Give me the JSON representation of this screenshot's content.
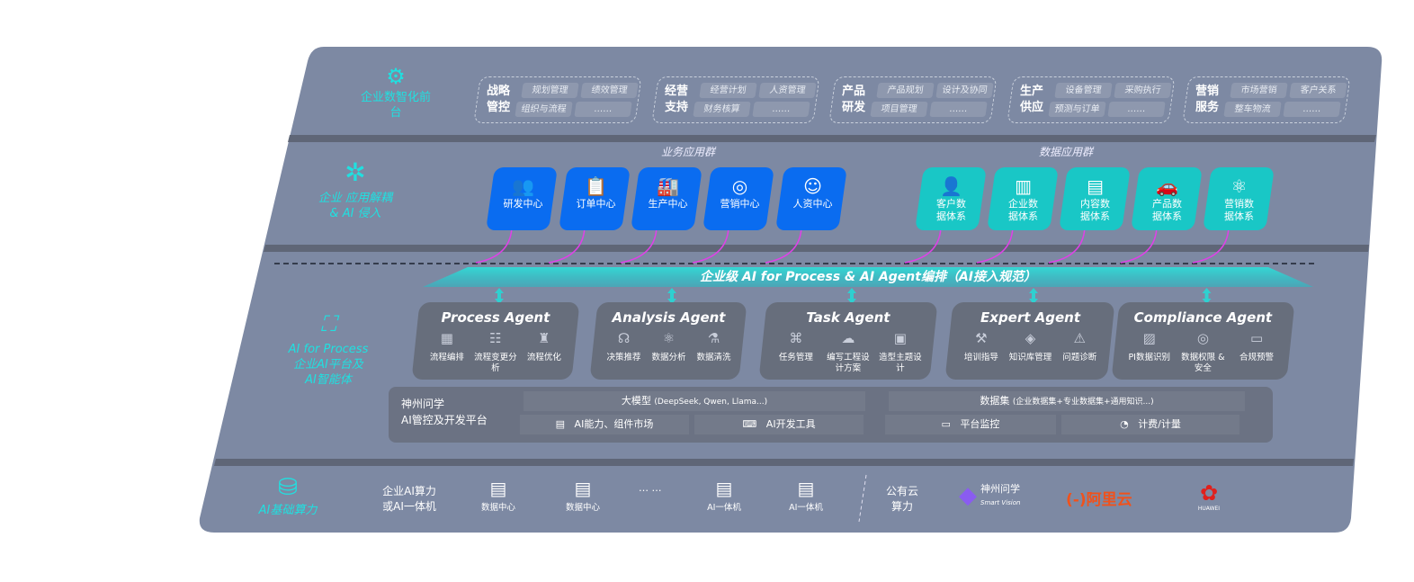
{
  "layers": {
    "front": {
      "label": "企业数智化前台",
      "icon": "brain-icon"
    },
    "apps": {
      "label_line1": "企业 应用解耦",
      "label_line2": "& AI 侵入",
      "icon": "molecule-icon"
    },
    "ai": {
      "label_line1": "AI for Process",
      "label_line2": "企业AI平台及",
      "label_line3": "AI智能体",
      "icon": "face-scan-icon"
    },
    "infra": {
      "label": "AI基础算力",
      "icon": "database-icon"
    }
  },
  "front_groups": [
    {
      "title": "战略管控",
      "items": [
        "规划管理",
        "绩效管理",
        "组织与流程",
        "……"
      ]
    },
    {
      "title": "经营支持",
      "items": [
        "经营计划",
        "人资管理",
        "财务核算",
        "……"
      ]
    },
    {
      "title": "产品研发",
      "items": [
        "产品规划",
        "设计及协同",
        "项目管理",
        "……"
      ]
    },
    {
      "title": "生产供应",
      "items": [
        "设备管理",
        "采购执行",
        "预测与订单",
        "……"
      ]
    },
    {
      "title": "营销服务",
      "items": [
        "市场营销",
        "客户关系",
        "整车物流",
        "……"
      ]
    }
  ],
  "business_apps": {
    "title": "业务应用群",
    "items": [
      {
        "label": "研发中心",
        "icon": "users-icon"
      },
      {
        "label": "订单中心",
        "icon": "clipboard-icon"
      },
      {
        "label": "生产中心",
        "icon": "factory-icon"
      },
      {
        "label": "营销中心",
        "icon": "target-icon"
      },
      {
        "label": "人资中心",
        "icon": "person-icon"
      }
    ]
  },
  "data_apps": {
    "title": "数据应用群",
    "items": [
      {
        "label": "客户数据体系",
        "icon": "user-icon"
      },
      {
        "label": "企业数据体系",
        "icon": "building-icon"
      },
      {
        "label": "内容数据体系",
        "icon": "books-icon"
      },
      {
        "label": "产品数据体系",
        "icon": "car-icon"
      },
      {
        "label": "营销数据体系",
        "icon": "atom-icon"
      }
    ]
  },
  "orchestration": "企业级 AI for Process & AI Agent编排（AI接入规范）",
  "agents": [
    {
      "name": "Process Agent",
      "items": [
        "流程编排",
        "流程变更分析",
        "流程优化"
      ]
    },
    {
      "name": "Analysis Agent",
      "items": [
        "决策推荐",
        "数据分析",
        "数据清洗"
      ]
    },
    {
      "name": "Task Agent",
      "items": [
        "任务管理",
        "编写工程设计方案",
        "造型主题设计"
      ]
    },
    {
      "name": "Expert Agent",
      "items": [
        "培训指导",
        "知识库管理",
        "问题诊断"
      ]
    },
    {
      "name": "Compliance Agent",
      "items": [
        "PI数据识别",
        "数据权限 & 安全",
        "合规预警"
      ]
    }
  ],
  "platform": {
    "title_line1": "神州问学",
    "title_line2": "AI管控及开发平台",
    "model": "大模型",
    "model_note": "(DeepSeek, Qwen, Llama...)",
    "dataset": "数据集",
    "dataset_note": "(企业数据集+专业数据集+通用知识...)",
    "tools": [
      "AI能力、组件市场",
      "AI开发工具",
      "平台监控",
      "计费/计量"
    ]
  },
  "infra": {
    "enterprise_line1": "企业AI算力",
    "enterprise_line2": "或AI一体机",
    "servers": [
      "数据中心",
      "数据中心",
      "AI一体机",
      "AI一体机"
    ],
    "ellipsis": "… …",
    "cloud_line1": "公有云",
    "cloud_line2": "算力",
    "vendors": {
      "smartvision": "神州问学",
      "smartvision_sub": "Smart Vision",
      "aliyun": "阿里云",
      "huawei": "HUAWEI"
    }
  },
  "colors": {
    "panel": "#7d89a3",
    "blue": "#0a6cf0",
    "cyan": "#19c7c6",
    "teal_text": "#20e0e0",
    "arrow": "#e040e8"
  }
}
